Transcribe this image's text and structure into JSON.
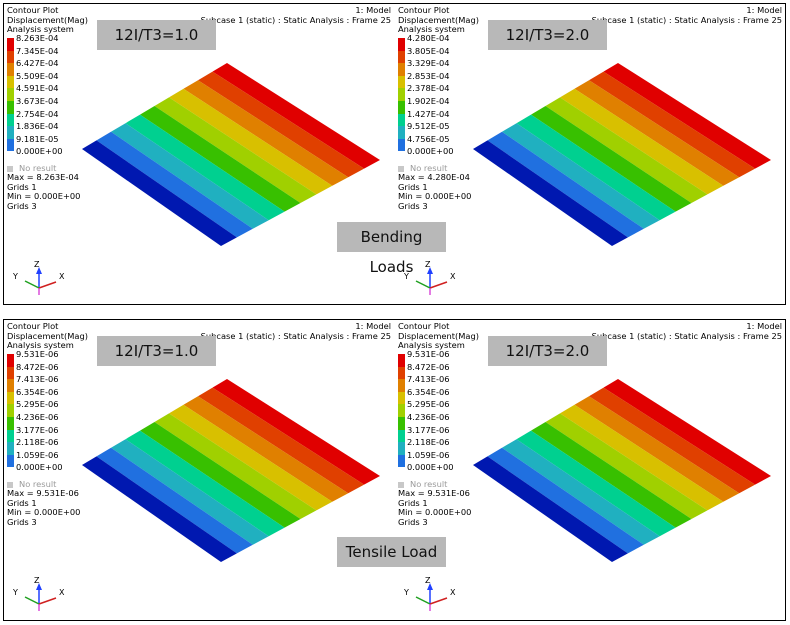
{
  "rows": [
    {
      "label": "Bending Loads",
      "panels": [
        {
          "header": [
            "Contour Plot",
            "Displacement(Mag)",
            "Analysis system"
          ],
          "model": "1: Model",
          "subcase": "Subcase 1 (static) : Static Analysis : Frame 25",
          "badge": "12I/T3=1.0",
          "legend": [
            "8.263E-04",
            "7.345E-04",
            "6.427E-04",
            "5.509E-04",
            "4.591E-04",
            "3.673E-04",
            "2.754E-04",
            "1.836E-04",
            "9.181E-05",
            "0.000E+00"
          ],
          "no_result": "No result",
          "stats": [
            "Max = 8.263E-04",
            "Grids 1",
            "Min = 0.000E+00",
            "Grids 3"
          ]
        },
        {
          "header": [
            "Contour Plot",
            "Displacement(Mag)",
            "Analysis system"
          ],
          "model": "1: Model",
          "subcase": "Subcase 1 (static) : Static Analysis : Frame 25",
          "badge": "12I/T3=2.0",
          "legend": [
            "4.280E-04",
            "3.805E-04",
            "3.329E-04",
            "2.853E-04",
            "2.378E-04",
            "1.902E-04",
            "1.427E-04",
            "9.512E-05",
            "4.756E-05",
            "0.000E+00"
          ],
          "no_result": "No result",
          "stats": [
            "Max = 4.280E-04",
            "Grids 1",
            "Min = 0.000E+00",
            "Grids 3"
          ]
        }
      ]
    },
    {
      "label": "Tensile Load",
      "panels": [
        {
          "header": [
            "Contour Plot",
            "Displacement(Mag)",
            "Analysis system"
          ],
          "model": "1: Model",
          "subcase": "Subcase 1 (static) : Static Analysis : Frame 25",
          "badge": "12I/T3=1.0",
          "legend": [
            "9.531E-06",
            "8.472E-06",
            "7.413E-06",
            "6.354E-06",
            "5.295E-06",
            "4.236E-06",
            "3.177E-06",
            "2.118E-06",
            "1.059E-06",
            "0.000E+00"
          ],
          "no_result": "No result",
          "stats": [
            "Max = 9.531E-06",
            "Grids 1",
            "Min = 0.000E+00",
            "Grids 3"
          ]
        },
        {
          "header": [
            "Contour Plot",
            "Displacement(Mag)",
            "Analysis system"
          ],
          "model": "1: Model",
          "subcase": "Subcase 1 (static) : Static Analysis : Frame 25",
          "badge": "12I/T3=2.0",
          "legend": [
            "9.531E-06",
            "8.472E-06",
            "7.413E-06",
            "6.354E-06",
            "5.295E-06",
            "4.236E-06",
            "3.177E-06",
            "2.118E-06",
            "1.059E-06",
            "0.000E+00"
          ],
          "no_result": "No result",
          "stats": [
            "Max = 9.531E-06",
            "Grids 1",
            "Min = 0.000E+00",
            "Grids 3"
          ]
        }
      ]
    }
  ],
  "triad_labels": {
    "y": "Y",
    "z": "Z",
    "x": "X"
  },
  "colors": {
    "contour": [
      "#e00000",
      "#e04000",
      "#e08000",
      "#d8c000",
      "#a0d000",
      "#38c000",
      "#00d090",
      "#20b0c0",
      "#2070e0",
      "#0018b0"
    ],
    "badge_bg": "#b8b8b8"
  }
}
